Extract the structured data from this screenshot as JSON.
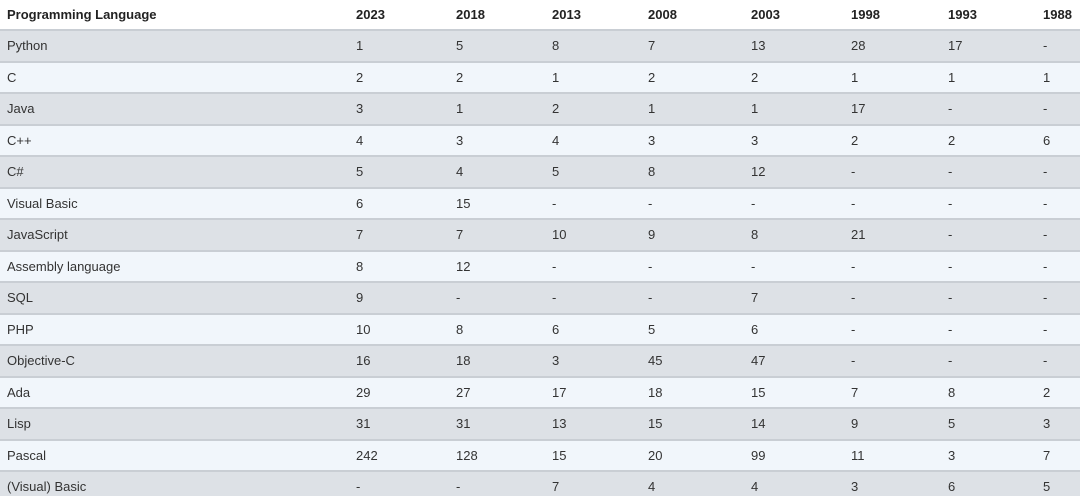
{
  "table": {
    "columns": [
      "Programming Language",
      "2023",
      "2018",
      "2013",
      "2008",
      "2003",
      "1998",
      "1993",
      "1988"
    ],
    "rows": [
      [
        "Python",
        "1",
        "5",
        "8",
        "7",
        "13",
        "28",
        "17",
        "-"
      ],
      [
        "C",
        "2",
        "2",
        "1",
        "2",
        "2",
        "1",
        "1",
        "1"
      ],
      [
        "Java",
        "3",
        "1",
        "2",
        "1",
        "1",
        "17",
        "-",
        "-"
      ],
      [
        "C++",
        "4",
        "3",
        "4",
        "3",
        "3",
        "2",
        "2",
        "6"
      ],
      [
        "C#",
        "5",
        "4",
        "5",
        "8",
        "12",
        "-",
        "-",
        "-"
      ],
      [
        "Visual Basic",
        "6",
        "15",
        "-",
        "-",
        "-",
        "-",
        "-",
        "-"
      ],
      [
        "JavaScript",
        "7",
        "7",
        "10",
        "9",
        "8",
        "21",
        "-",
        "-"
      ],
      [
        "Assembly language",
        "8",
        "12",
        "-",
        "-",
        "-",
        "-",
        "-",
        "-"
      ],
      [
        "SQL",
        "9",
        "-",
        "-",
        "-",
        "7",
        "-",
        "-",
        "-"
      ],
      [
        "PHP",
        "10",
        "8",
        "6",
        "5",
        "6",
        "-",
        "-",
        "-"
      ],
      [
        "Objective-C",
        "16",
        "18",
        "3",
        "45",
        "47",
        "-",
        "-",
        "-"
      ],
      [
        "Ada",
        "29",
        "27",
        "17",
        "18",
        "15",
        "7",
        "8",
        "2"
      ],
      [
        "Lisp",
        "31",
        "31",
        "13",
        "15",
        "14",
        "9",
        "5",
        "3"
      ],
      [
        "Pascal",
        "242",
        "128",
        "15",
        "20",
        "99",
        "11",
        "3",
        "7"
      ],
      [
        "(Visual) Basic",
        "-",
        "-",
        "7",
        "4",
        "4",
        "3",
        "6",
        "5"
      ]
    ]
  }
}
